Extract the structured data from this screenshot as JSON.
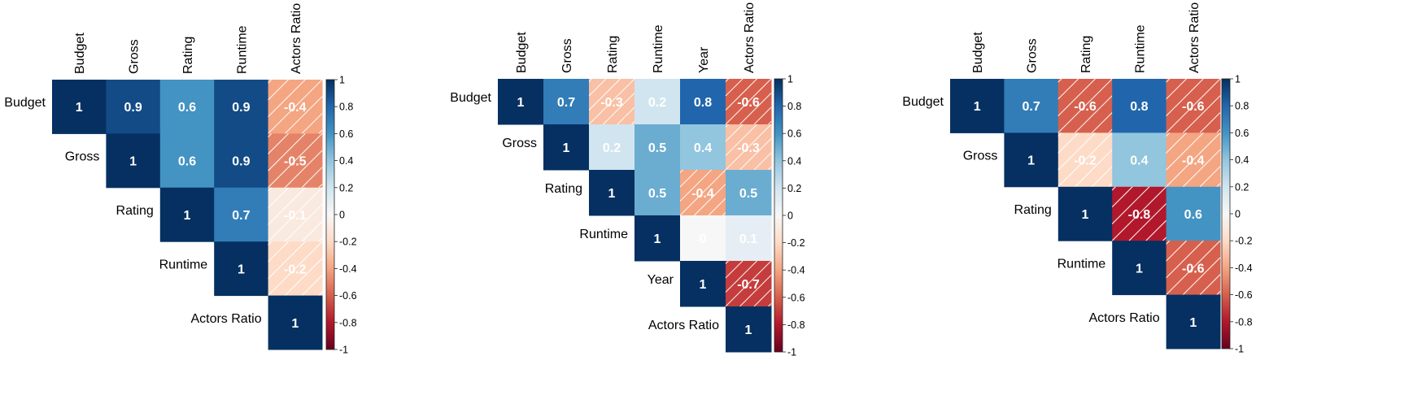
{
  "chart_data": [
    {
      "type": "heatmap",
      "variables": [
        "Budget",
        "Gross",
        "Rating",
        "Runtime",
        "Actors Ratio"
      ],
      "matrix": [
        [
          1,
          0.9,
          0.6,
          0.9,
          -0.4
        ],
        [
          null,
          1,
          0.6,
          0.9,
          -0.5
        ],
        [
          null,
          null,
          1,
          0.7,
          -0.1
        ],
        [
          null,
          null,
          null,
          1,
          -0.2
        ],
        [
          null,
          null,
          null,
          null,
          1
        ]
      ],
      "negative_hatched": true,
      "colorbar": {
        "range": [
          -1,
          1
        ],
        "ticks": [
          "1",
          "0.8",
          "0.6",
          "0.4",
          "0.2",
          "0",
          "-0.2",
          "-0.4",
          "-0.6",
          "-0.8",
          "-1"
        ]
      }
    },
    {
      "type": "heatmap",
      "variables": [
        "Budget",
        "Gross",
        "Rating",
        "Runtime",
        "Year",
        "Actors Ratio"
      ],
      "matrix": [
        [
          1,
          0.7,
          -0.3,
          0.2,
          0.8,
          -0.6
        ],
        [
          null,
          1,
          0.2,
          0.5,
          0.4,
          -0.3
        ],
        [
          null,
          null,
          1,
          0.5,
          -0.4,
          0.5
        ],
        [
          null,
          null,
          null,
          1,
          0,
          0.1
        ],
        [
          null,
          null,
          null,
          null,
          1,
          -0.7
        ],
        [
          null,
          null,
          null,
          null,
          null,
          1
        ]
      ],
      "negative_hatched": true,
      "colorbar": {
        "range": [
          -1,
          1
        ],
        "ticks": [
          "1",
          "0.8",
          "0.6",
          "0.4",
          "0.2",
          "0",
          "-0.2",
          "-0.4",
          "-0.6",
          "-0.8",
          "-1"
        ]
      }
    },
    {
      "type": "heatmap",
      "variables": [
        "Budget",
        "Gross",
        "Rating",
        "Runtime",
        "Actors Ratio"
      ],
      "matrix": [
        [
          1,
          0.7,
          -0.6,
          0.8,
          -0.6
        ],
        [
          null,
          1,
          -0.2,
          0.4,
          -0.4
        ],
        [
          null,
          null,
          1,
          -0.8,
          0.6
        ],
        [
          null,
          null,
          null,
          1,
          -0.6
        ],
        [
          null,
          null,
          null,
          null,
          1
        ]
      ],
      "negative_hatched": true,
      "colorbar": {
        "range": [
          -1,
          1
        ],
        "ticks": [
          "1",
          "0.8",
          "0.6",
          "0.4",
          "0.2",
          "0",
          "-0.2",
          "-0.4",
          "-0.6",
          "-0.8",
          "-1"
        ]
      }
    }
  ]
}
